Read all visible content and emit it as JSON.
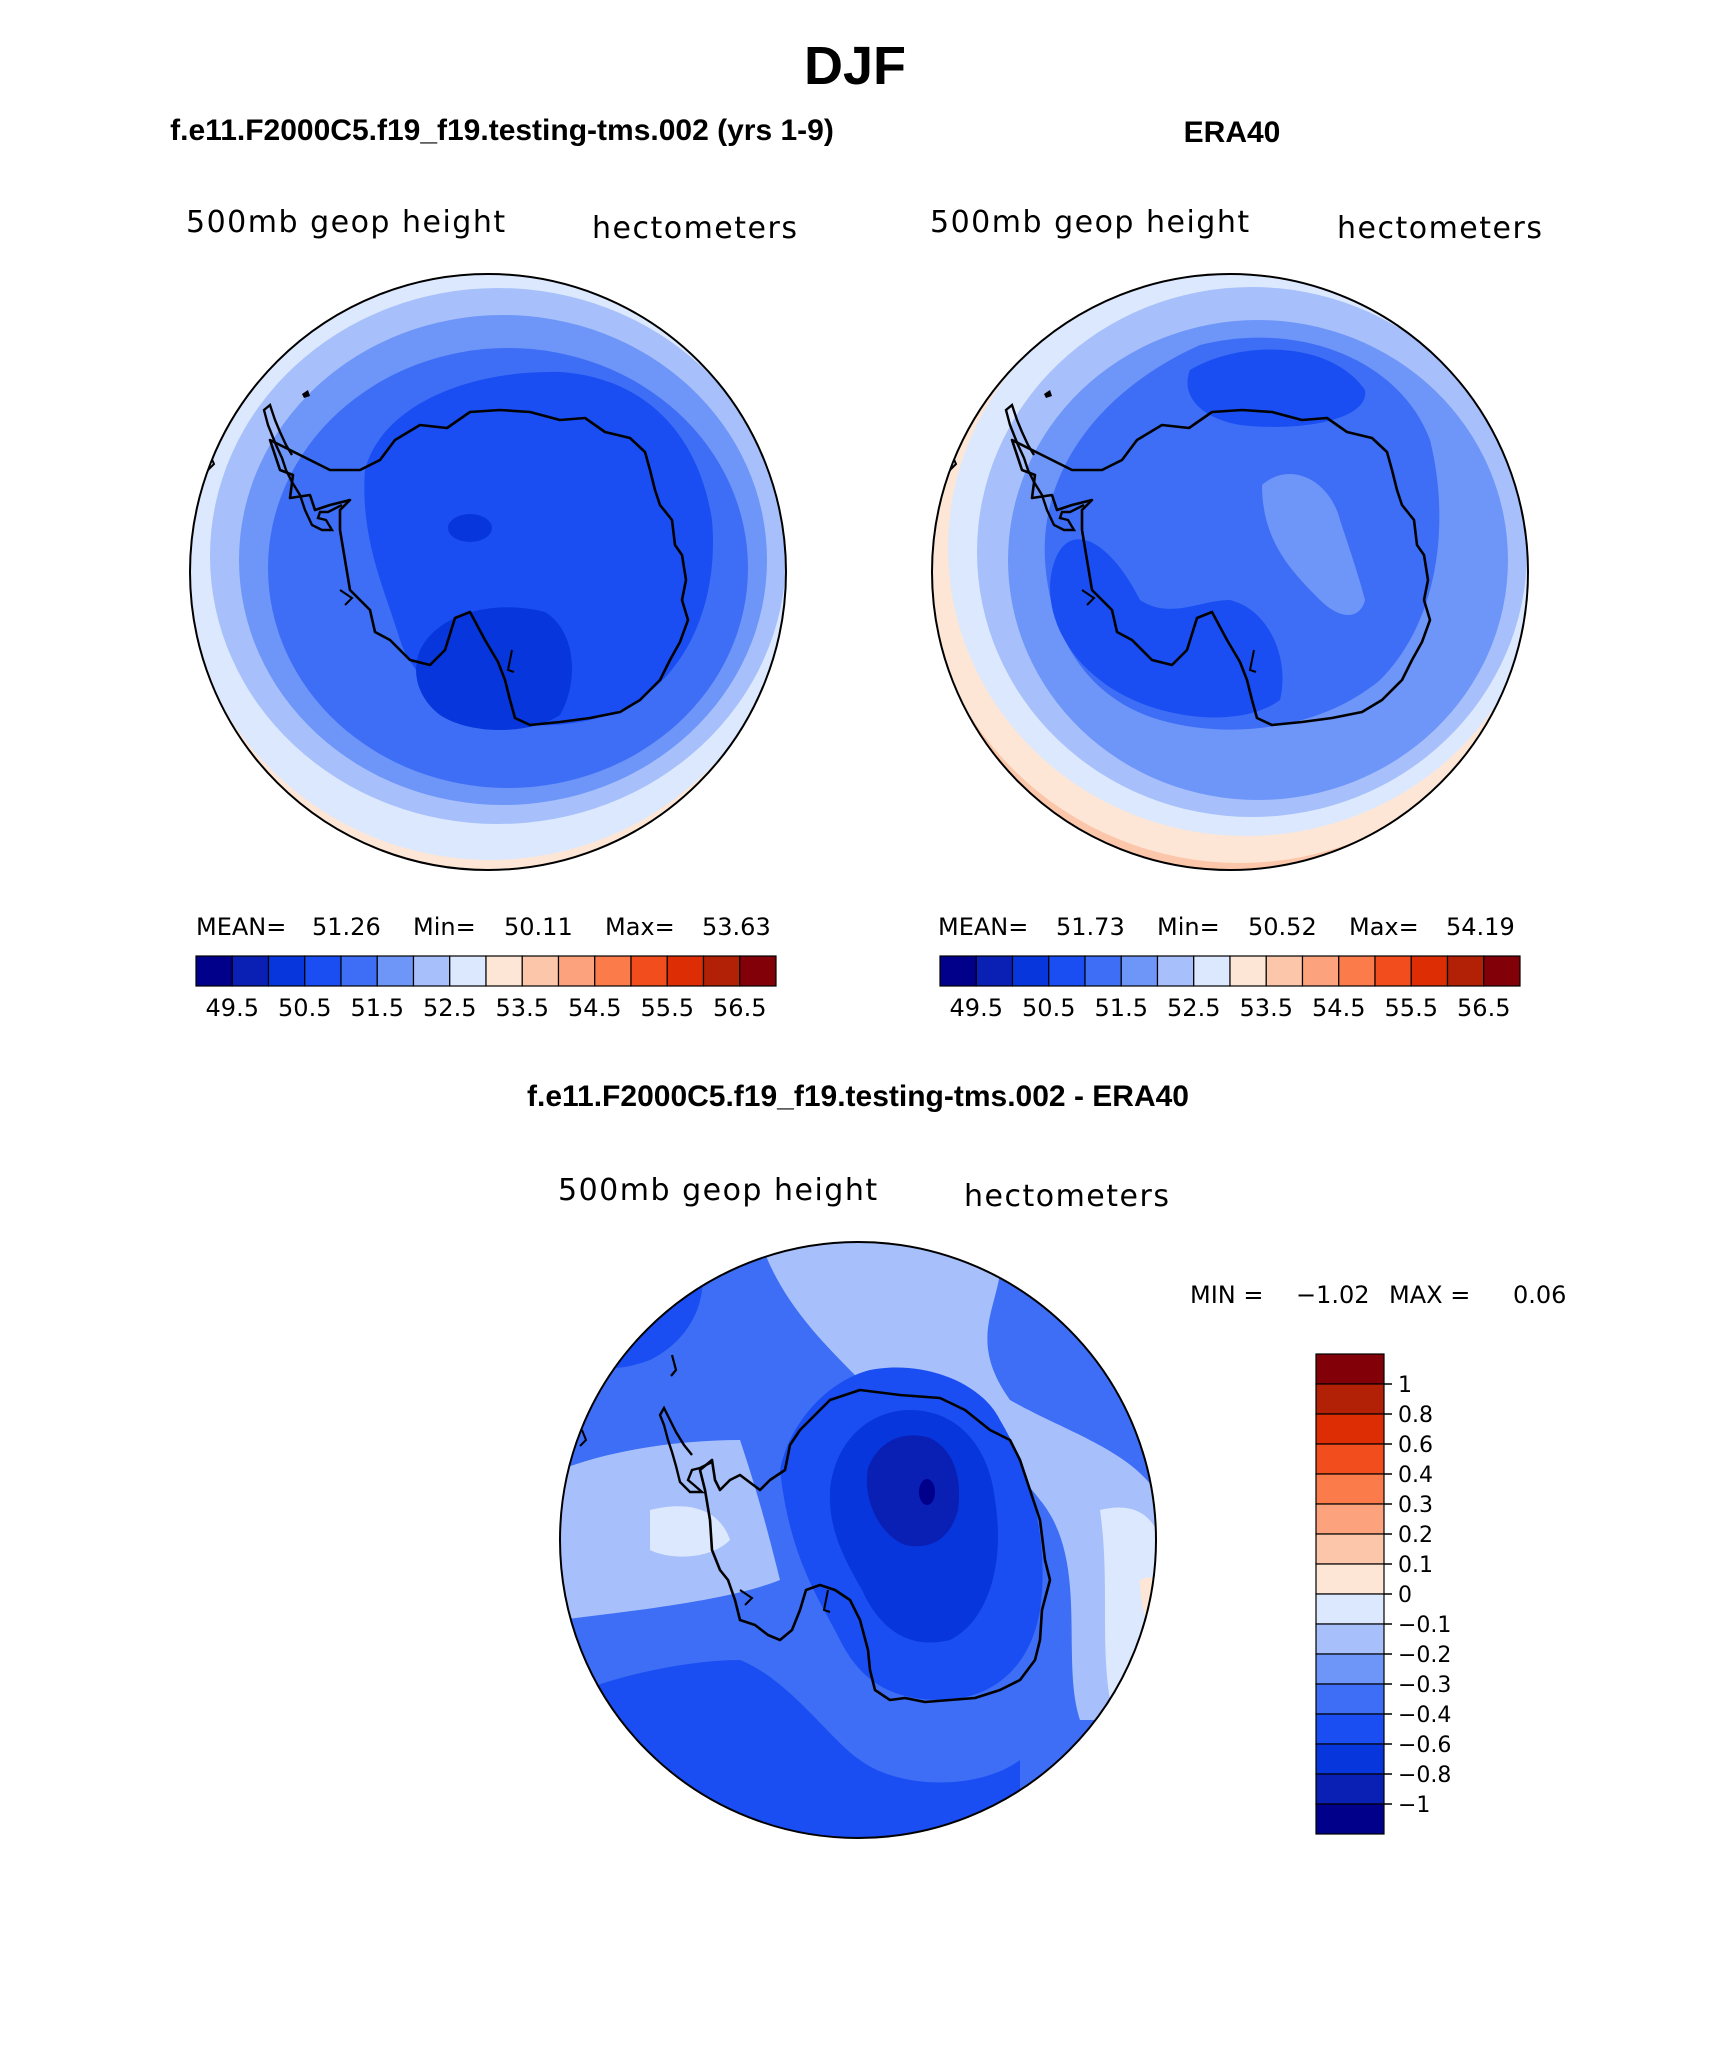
{
  "title": "DJF",
  "colors": {
    "full_palette": [
      "#00008b",
      "#0a1fb4",
      "#0736dd",
      "#1a4ef2",
      "#3d6ef5",
      "#6e95f8",
      "#a7c0fb",
      "#dce8fd",
      "#fde6d6",
      "#fcc6aa",
      "#fca37e",
      "#fc7b4b",
      "#f24d1c",
      "#dc2d05",
      "#b22006",
      "#820008"
    ],
    "diff_palette": [
      "#00008b",
      "#0a1fb4",
      "#0736dd",
      "#1a4ef2",
      "#3d6ef5",
      "#6e95f8",
      "#a7c0fb",
      "#dce8fd",
      "#fde6d6",
      "#fcc6aa",
      "#fca37e",
      "#fc7b4b",
      "#f24d1c",
      "#dc2d05",
      "#b22006",
      "#820008"
    ],
    "coastline": "#000000"
  },
  "chart_data": [
    {
      "type": "heatmap",
      "panel_title": "f.e11.F2000C5.f19_f19.testing-tms.002 (yrs 1-9)",
      "left_label": "500mb geop height",
      "right_label": "hectometers",
      "stats": {
        "mean_label": "MEAN=",
        "mean": "51.26",
        "min_label": "Min=",
        "min": "50.11",
        "max_label": "Max=",
        "max": "53.63"
      },
      "colorbar_ticks": [
        "49.5",
        "50.5",
        "51.5",
        "52.5",
        "53.5",
        "54.5",
        "55.5",
        "56.5"
      ],
      "colorbar_levels": [
        49,
        49.5,
        50,
        50.5,
        51,
        51.5,
        52,
        52.5,
        53,
        53.5,
        54,
        54.5,
        55,
        55.5,
        56,
        56.5,
        57
      ],
      "field_levels_shown": [
        50.25,
        50.75,
        51.25,
        51.75,
        52.25,
        52.75,
        53.25,
        53.75
      ]
    },
    {
      "type": "heatmap",
      "panel_title": "ERA40",
      "left_label": "500mb geop height",
      "right_label": "hectometers",
      "stats": {
        "mean_label": "MEAN=",
        "mean": "51.73",
        "min_label": "Min=",
        "min": "50.52",
        "max_label": "Max=",
        "max": "54.19"
      },
      "colorbar_ticks": [
        "49.5",
        "50.5",
        "51.5",
        "52.5",
        "53.5",
        "54.5",
        "55.5",
        "56.5"
      ],
      "colorbar_levels": [
        49,
        49.5,
        50,
        50.5,
        51,
        51.5,
        52,
        52.5,
        53,
        53.5,
        54,
        54.5,
        55,
        55.5,
        56,
        56.5,
        57
      ],
      "field_levels_shown": [
        50.75,
        51.25,
        51.75,
        52.25,
        52.75,
        53.25,
        53.75,
        54.25
      ]
    },
    {
      "type": "heatmap",
      "panel_title": "f.e11.F2000C5.f19_f19.testing-tms.002 - ERA40",
      "left_label": "500mb geop height",
      "right_label": "hectometers",
      "stats": {
        "min_label": "MIN =",
        "min": "−1.02",
        "max_label": "MAX =",
        "max": "0.06"
      },
      "colorbar_ticks": [
        "1",
        "0.8",
        "0.6",
        "0.4",
        "0.3",
        "0.2",
        "0.1",
        "0",
        "−0.1",
        "−0.2",
        "−0.3",
        "−0.4",
        "−0.6",
        "−0.8",
        "−1"
      ],
      "field_levels_shown": [
        -1.0,
        -0.8,
        -0.6,
        -0.4,
        -0.3,
        -0.2,
        -0.1,
        0.0
      ]
    }
  ]
}
